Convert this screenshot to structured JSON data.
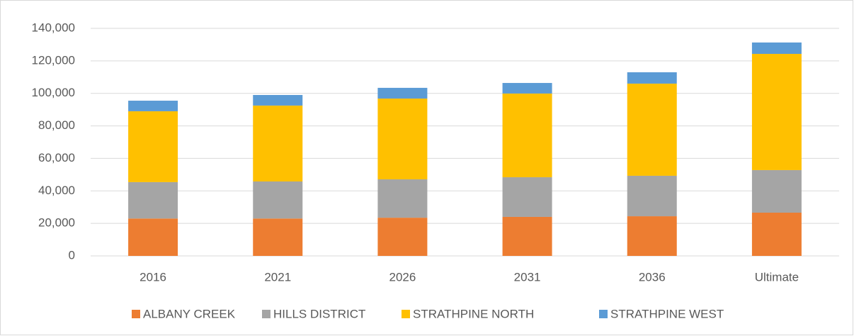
{
  "chart_data": {
    "type": "stacked_bar",
    "categories": [
      "2016",
      "2021",
      "2026",
      "2031",
      "2036",
      "Ultimate"
    ],
    "series": [
      {
        "name": "ALBANY CREEK",
        "color": "#ed7d31",
        "values": [
          23000,
          23000,
          23500,
          24000,
          24400,
          26600
        ]
      },
      {
        "name": "HILLS DISTRICT",
        "color": "#a5a5a5",
        "values": [
          22400,
          22800,
          23600,
          24400,
          24900,
          26200
        ]
      },
      {
        "name": "STRATHPINE NORTH",
        "color": "#ffc000",
        "values": [
          43600,
          46700,
          49700,
          51500,
          56700,
          71500
        ]
      },
      {
        "name": "STRATHPINE WEST",
        "color": "#5b9bd5",
        "values": [
          6500,
          6500,
          6600,
          6500,
          7000,
          7000
        ]
      }
    ],
    "ylim": [
      0,
      140000
    ],
    "yticks": [
      0,
      {
        "value": 20000,
        "label": "20,000"
      },
      {
        "value": 40000,
        "label": "40,000"
      },
      {
        "value": 60000,
        "label": "60,000"
      },
      {
        "value": 80000,
        "label": "80,000"
      },
      {
        "value": 100000,
        "label": "100,000"
      },
      {
        "value": 120000,
        "label": "120,000"
      },
      {
        "value": 140000,
        "label": "140,000"
      }
    ],
    "grid": true,
    "legend": "bottom"
  }
}
